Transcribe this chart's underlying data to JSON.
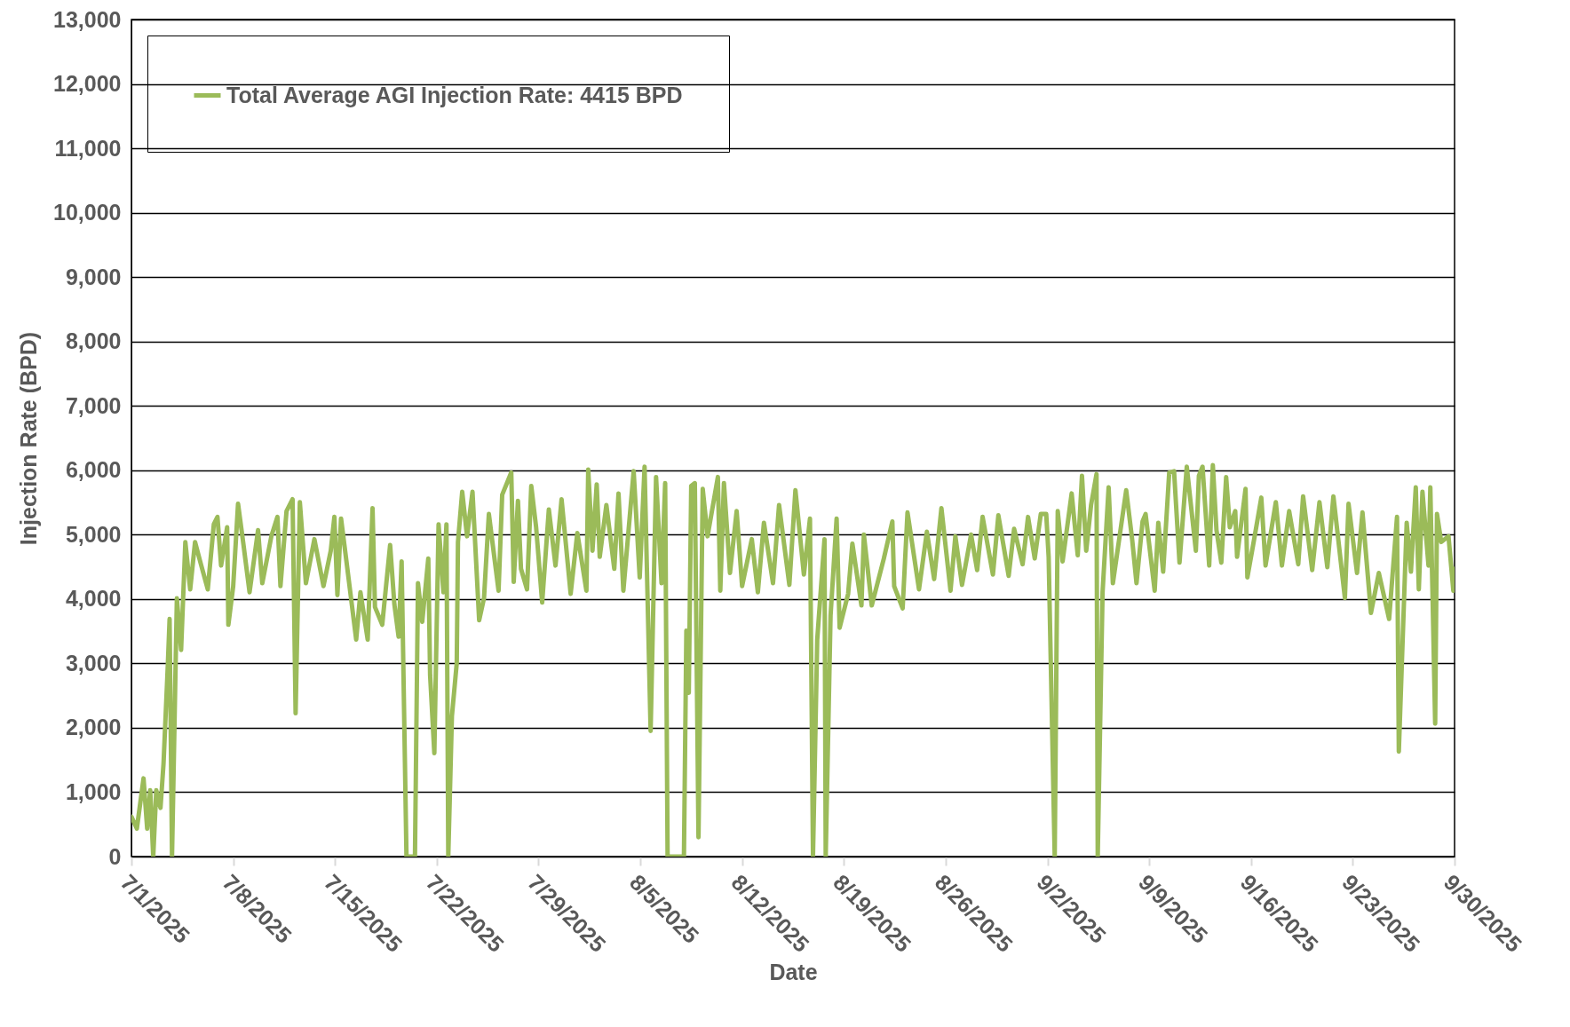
{
  "chart_data": {
    "type": "line",
    "xlabel": "Date",
    "ylabel": "Injection Rate (BPD)",
    "grid": "y",
    "legend": "top left",
    "xlim": [
      "2025-07-01",
      "2025-09-30"
    ],
    "xticks": [
      {
        "value": "2025-07-01",
        "label": "7/1/2025"
      },
      {
        "value": "2025-07-08",
        "label": "7/8/2025"
      },
      {
        "value": "2025-07-15",
        "label": "7/15/2025"
      },
      {
        "value": "2025-07-22",
        "label": "7/22/2025"
      },
      {
        "value": "2025-07-29",
        "label": "7/29/2025"
      },
      {
        "value": "2025-08-05",
        "label": "8/5/2025"
      },
      {
        "value": "2025-08-12",
        "label": "8/12/2025"
      },
      {
        "value": "2025-08-19",
        "label": "8/19/2025"
      },
      {
        "value": "2025-08-26",
        "label": "8/26/2025"
      },
      {
        "value": "2025-09-02",
        "label": "9/2/2025"
      },
      {
        "value": "2025-09-09",
        "label": "9/9/2025"
      },
      {
        "value": "2025-09-16",
        "label": "9/16/2025"
      },
      {
        "value": "2025-09-23",
        "label": "9/23/2025"
      },
      {
        "value": "2025-09-30",
        "label": "9/30/2025"
      }
    ],
    "ylim": [
      0,
      13000
    ],
    "yticks": [
      0,
      {
        "value": 1000,
        "label": "1,000"
      },
      {
        "value": 2000,
        "label": "2,000"
      },
      {
        "value": 3000,
        "label": "3,000"
      },
      {
        "value": 4000,
        "label": "4,000"
      },
      {
        "value": 5000,
        "label": "5,000"
      },
      {
        "value": 6000,
        "label": "6,000"
      },
      {
        "value": 7000,
        "label": "7,000"
      },
      {
        "value": 8000,
        "label": "8,000"
      },
      {
        "value": 9000,
        "label": "9,000"
      },
      {
        "value": 10000,
        "label": "10,000"
      },
      {
        "value": 11000,
        "label": "11,000"
      },
      {
        "value": 12000,
        "label": "12,000"
      },
      {
        "value": 13000,
        "label": "13,000"
      }
    ],
    "x": [
      "2025-07-01T00:00",
      "2025-07-01T09:00",
      "2025-07-01T20:00",
      "2025-07-02T02:00",
      "2025-07-02T07:00",
      "2025-07-02T12:00",
      "2025-07-02T17:00",
      "2025-07-03T00:00",
      "2025-07-03T05:00",
      "2025-07-03T12:00",
      "2025-07-03T15:00",
      "2025-07-03T19:00",
      "2025-07-04T03:00",
      "2025-07-04T10:00",
      "2025-07-04T17:00",
      "2025-07-05T01:00",
      "2025-07-05T09:00",
      "2025-07-05T18:00",
      "2025-07-06T06:00",
      "2025-07-06T16:00",
      "2025-07-06T22:00",
      "2025-07-07T04:00",
      "2025-07-07T14:00",
      "2025-07-07T16:00",
      "2025-07-08T00:00",
      "2025-07-08T08:00",
      "2025-07-08T17:00",
      "2025-07-09T03:00",
      "2025-07-09T17:00",
      "2025-07-10T00:00",
      "2025-07-10T15:00",
      "2025-07-11T01:00",
      "2025-07-11T06:00",
      "2025-07-11T16:00",
      "2025-07-12T02:00",
      "2025-07-12T07:00",
      "2025-07-12T14:00",
      "2025-07-13T00:00",
      "2025-07-13T14:00",
      "2025-07-14T05:00",
      "2025-07-14T17:00",
      "2025-07-14T23:00",
      "2025-07-15T04:00",
      "2025-07-15T10:00",
      "2025-07-15T18:00",
      "2025-07-16T11:00",
      "2025-07-16T18:00",
      "2025-07-17T06:00",
      "2025-07-17T14:00",
      "2025-07-17T18:00",
      "2025-07-18T06:00",
      "2025-07-18T19:00",
      "2025-07-19T02:00",
      "2025-07-19T09:00",
      "2025-07-19T14:00",
      "2025-07-19T22:00",
      "2025-07-20T12:00",
      "2025-07-20T17:00",
      "2025-07-21T00:00",
      "2025-07-21T10:00",
      "2025-07-21T13:00",
      "2025-07-21T20:00",
      "2025-07-22T03:00",
      "2025-07-22T11:00",
      "2025-07-22T16:00",
      "2025-07-22T19:00",
      "2025-07-23T01:00",
      "2025-07-23T09:00",
      "2025-07-23T11:00",
      "2025-07-23T18:00",
      "2025-07-24T02:00",
      "2025-07-24T11:00",
      "2025-07-24T22:00",
      "2025-07-25T06:00",
      "2025-07-25T14:00",
      "2025-07-26T06:00",
      "2025-07-26T12:00",
      "2025-07-27T03:00",
      "2025-07-27T07:00",
      "2025-07-27T14:00",
      "2025-07-27T19:00",
      "2025-07-28T05:00",
      "2025-07-28T12:00",
      "2025-07-28T20:00",
      "2025-07-29T06:00",
      "2025-07-29T17:00",
      "2025-07-30T04:00",
      "2025-07-30T14:00",
      "2025-07-31T05:00",
      "2025-07-31T16:00",
      "2025-08-01T07:00",
      "2025-08-01T10:00",
      "2025-08-01T17:00",
      "2025-08-02T00:00",
      "2025-08-02T05:00",
      "2025-08-02T16:00",
      "2025-08-03T05:00",
      "2025-08-03T12:00",
      "2025-08-03T20:00",
      "2025-08-04T13:00",
      "2025-08-04T23:00",
      "2025-08-05T07:00",
      "2025-08-05T17:00",
      "2025-08-06T02:00",
      "2025-08-06T11:00",
      "2025-08-06T17:00",
      "2025-08-06T21:00",
      "2025-08-08T00:00",
      "2025-08-08T04:00",
      "2025-08-08T08:00",
      "2025-08-08T12:00",
      "2025-08-08T18:00",
      "2025-08-09T00:00",
      "2025-08-09T07:00",
      "2025-08-09T15:00",
      "2025-08-10T08:00",
      "2025-08-10T12:00",
      "2025-08-10T18:00",
      "2025-08-11T04:00",
      "2025-08-11T15:00",
      "2025-08-12T00:00",
      "2025-08-12T16:00",
      "2025-08-13T02:00",
      "2025-08-13T12:00",
      "2025-08-14T03:00",
      "2025-08-14T13:00",
      "2025-08-15T06:00",
      "2025-08-15T16:00",
      "2025-08-16T06:00",
      "2025-08-16T16:00",
      "2025-08-16T21:00",
      "2025-08-17T04:00",
      "2025-08-17T16:00",
      "2025-08-17T18:00",
      "2025-08-18T02:00",
      "2025-08-18T12:00",
      "2025-08-18T17:00",
      "2025-08-19T07:00",
      "2025-08-19T14:00",
      "2025-08-20T05:00",
      "2025-08-20T09:00",
      "2025-08-20T22:00",
      "2025-08-21T18:00",
      "2025-08-22T08:00",
      "2025-08-22T11:00",
      "2025-08-23T01:00",
      "2025-08-23T09:00",
      "2025-08-24T04:00",
      "2025-08-24T17:00",
      "2025-08-25T05:00",
      "2025-08-25T17:00",
      "2025-08-26T08:00",
      "2025-08-26T16:00",
      "2025-08-27T03:00",
      "2025-08-27T18:00",
      "2025-08-28T04:00",
      "2025-08-28T13:00",
      "2025-08-29T06:00",
      "2025-08-29T15:00",
      "2025-08-30T08:00",
      "2025-08-30T17:00",
      "2025-08-31T07:00",
      "2025-08-31T16:00",
      "2025-09-01T03:00",
      "2025-09-01T13:00",
      "2025-09-01T22:00",
      "2025-09-02T02:00",
      "2025-09-02T12:00",
      "2025-09-02T17:00",
      "2025-09-03T01:00",
      "2025-09-03T16:00",
      "2025-09-04T02:00",
      "2025-09-04T09:00",
      "2025-09-04T16:00",
      "2025-09-05T00:00",
      "2025-09-05T09:00",
      "2025-09-05T11:00",
      "2025-09-05T19:00",
      "2025-09-06T05:00",
      "2025-09-06T12:00",
      "2025-09-07T10:00",
      "2025-09-07T20:00",
      "2025-09-08T03:00",
      "2025-09-08T13:00",
      "2025-09-08T18:00",
      "2025-09-09T09:00",
      "2025-09-09T15:00",
      "2025-09-09T23:00",
      "2025-09-10T09:00",
      "2025-09-10T17:00",
      "2025-09-11T02:00",
      "2025-09-11T14:00",
      "2025-09-12T05:00",
      "2025-09-12T10:00",
      "2025-09-12T16:00",
      "2025-09-13T03:00",
      "2025-09-13T09:00",
      "2025-09-13T15:00",
      "2025-09-13T23:00",
      "2025-09-14T07:00",
      "2025-09-14T13:00",
      "2025-09-14T22:00",
      "2025-09-15T01:00",
      "2025-09-15T15:00",
      "2025-09-15T18:00",
      "2025-09-16T07:00",
      "2025-09-16T17:00",
      "2025-09-17T00:00",
      "2025-09-17T17:00",
      "2025-09-18T03:00",
      "2025-09-18T15:00",
      "2025-09-19T06:00",
      "2025-09-19T14:00",
      "2025-09-20T05:00",
      "2025-09-20T17:00",
      "2025-09-21T06:00",
      "2025-09-21T16:00",
      "2025-09-22T11:00",
      "2025-09-22T17:00",
      "2025-09-23T07:00",
      "2025-09-23T16:00",
      "2025-09-24T06:00",
      "2025-09-24T19:00",
      "2025-09-25T12:00",
      "2025-09-26T01:00",
      "2025-09-26T04:00",
      "2025-09-26T17:00",
      "2025-09-27T00:00",
      "2025-09-27T08:00",
      "2025-09-27T13:00",
      "2025-09-27T19:00",
      "2025-09-28T05:00",
      "2025-09-28T08:00",
      "2025-09-28T16:00",
      "2025-09-28T19:00",
      "2025-09-29T02:00",
      "2025-09-29T14:00",
      "2025-09-29T22:00",
      "2025-09-30T00:00"
    ],
    "series": [
      {
        "name": "Total Average AGI Injection Rate: 4415 BPD",
        "color": "#9bbb59",
        "values": [
          620,
          435,
          1215,
          435,
          1030,
          0,
          1030,
          757,
          1445,
          2960,
          3690,
          0,
          4010,
          3210,
          4885,
          4150,
          4885,
          4565,
          4150,
          5160,
          5275,
          4520,
          5115,
          3600,
          4200,
          5480,
          4840,
          4105,
          5070,
          4245,
          4975,
          5275,
          4200,
          5365,
          5550,
          2225,
          5505,
          4245,
          4930,
          4200,
          4750,
          5275,
          4060,
          5250,
          4655,
          3370,
          4105,
          3370,
          5410,
          3875,
          3600,
          4840,
          3920,
          3415,
          4585,
          0,
          0,
          4245,
          3645,
          4630,
          2820,
          1605,
          5160,
          4105,
          5160,
          0,
          2180,
          3005,
          4885,
          5665,
          4975,
          5665,
          3670,
          4015,
          5320,
          4130,
          5620,
          5965,
          4265,
          5525,
          4470,
          4150,
          5755,
          5115,
          3945,
          5390,
          4520,
          5550,
          4080,
          5025,
          4130,
          6010,
          4750,
          5780,
          4655,
          5460,
          4470,
          5640,
          4130,
          5985,
          4335,
          6055,
          1950,
          5895,
          4245,
          5800,
          0,
          0,
          3510,
          2545,
          5755,
          5800,
          300,
          5710,
          4975,
          5895,
          4130,
          5800,
          4405,
          5365,
          4200,
          4930,
          4105,
          5185,
          4245,
          5460,
          4220,
          5690,
          4380,
          5250,
          0,
          3370,
          4930,
          0,
          3740,
          5250,
          3555,
          4080,
          4860,
          3900,
          5000,
          3900,
          4630,
          5205,
          4200,
          3855,
          5345,
          4150,
          5045,
          4310,
          5410,
          4130,
          4975,
          4220,
          5000,
          4450,
          5275,
          4380,
          5300,
          4360,
          5090,
          4540,
          5275,
          4630,
          5320,
          5320,
          4655,
          0,
          5365,
          4585,
          5640,
          4680,
          5915,
          4750,
          5460,
          5940,
          0,
          4105,
          5735,
          4245,
          5690,
          4910,
          4245,
          5205,
          5320,
          4130,
          5185,
          4425,
          5965,
          5985,
          4565,
          6055,
          4750,
          5915,
          6055,
          4520,
          6080,
          5070,
          4565,
          5895,
          5115,
          5365,
          4655,
          5710,
          4335,
          5025,
          5575,
          4520,
          5505,
          4520,
          5365,
          4540,
          5595,
          4450,
          5505,
          4495,
          5595,
          4015,
          5480,
          4405,
          5345,
          3785,
          4405,
          3690,
          5275,
          1630,
          5185,
          4425,
          5735,
          4150,
          5665,
          4520,
          5735,
          2065,
          5320,
          4885,
          4975,
          4130,
          4470
        ]
      }
    ]
  }
}
